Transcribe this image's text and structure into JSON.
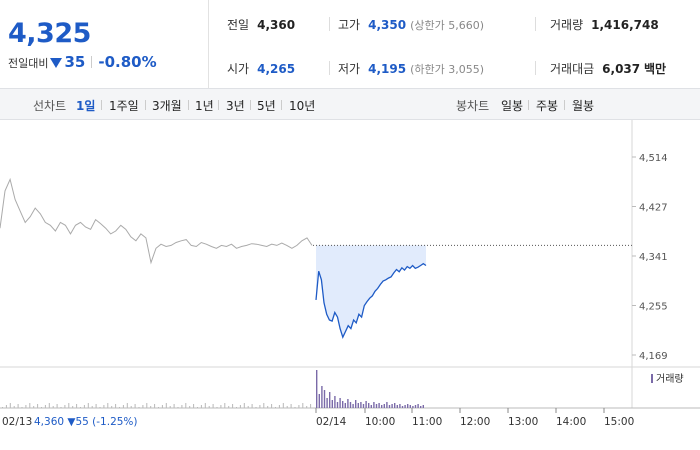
{
  "quote": {
    "price": "4,325",
    "change_label": "전일대비",
    "change_value": "35",
    "change_pct": "-0.80%",
    "prev_close": {
      "label": "전일",
      "value": "4,360"
    },
    "high": {
      "label": "고가",
      "value": "4,350",
      "sub": "(상한가 5,660)"
    },
    "volume": {
      "label": "거래량",
      "value": "1,416,748"
    },
    "open": {
      "label": "시가",
      "value": "4,265"
    },
    "low": {
      "label": "저가",
      "value": "4,195",
      "sub": "(하한가 3,055)"
    },
    "amount": {
      "label": "거래대금",
      "value": "6,037",
      "unit": "백만"
    }
  },
  "period_bar": {
    "line_title": "선차트",
    "line_periods": [
      "1일",
      "1주일",
      "3개월",
      "1년",
      "3년",
      "5년",
      "10년"
    ],
    "selected": "1일",
    "candle_title": "봉차트",
    "candle_periods": [
      "일봉",
      "주봉",
      "월봉"
    ]
  },
  "colors": {
    "accent": "#1e5bc6",
    "down": "#1e5bc6",
    "prev_line": "#aaaaaa",
    "fill": "#dce8fb",
    "volume": "#7a6aa8"
  },
  "chart_data": {
    "type": "line",
    "y_ticks": [
      "4,514",
      "4,427",
      "4,341",
      "4,255",
      "4,169"
    ],
    "ylim": [
      4169,
      4514
    ],
    "x_ticks": [
      "02/14",
      "10:00",
      "11:00",
      "12:00",
      "13:00",
      "14:00",
      "15:00"
    ],
    "prev_close_value": 4360,
    "prev_day_label": "02/13",
    "prev_day_summary": "4,360 ▼55 (-1.25%)",
    "volume_legend": "거래량",
    "previous_day_series": {
      "name": "02/13",
      "values": [
        4390,
        4455,
        4475,
        4440,
        4420,
        4400,
        4410,
        4425,
        4415,
        4400,
        4395,
        4385,
        4400,
        4395,
        4380,
        4395,
        4400,
        4392,
        4388,
        4405,
        4398,
        4390,
        4380,
        4385,
        4395,
        4388,
        4375,
        4368,
        4380,
        4373,
        4330,
        4355,
        4362,
        4358,
        4360,
        4365,
        4368,
        4370,
        4360,
        4358,
        4365,
        4362,
        4358,
        4355,
        4360,
        4358,
        4362,
        4355,
        4358,
        4360,
        4363,
        4362,
        4360,
        4358,
        4362,
        4360,
        4364,
        4360,
        4355,
        4360,
        4368,
        4373,
        4360
      ]
    },
    "today_series": {
      "name": "02/14",
      "values": [
        4265,
        4315,
        4300,
        4260,
        4240,
        4230,
        4228,
        4243,
        4235,
        4215,
        4200,
        4210,
        4220,
        4215,
        4230,
        4225,
        4240,
        4235,
        4255,
        4262,
        4268,
        4272,
        4280,
        4285,
        4292,
        4298,
        4300,
        4303,
        4305,
        4312,
        4318,
        4314,
        4321,
        4317,
        4323,
        4320,
        4325,
        4320,
        4322,
        4325,
        4328,
        4325
      ]
    }
  }
}
